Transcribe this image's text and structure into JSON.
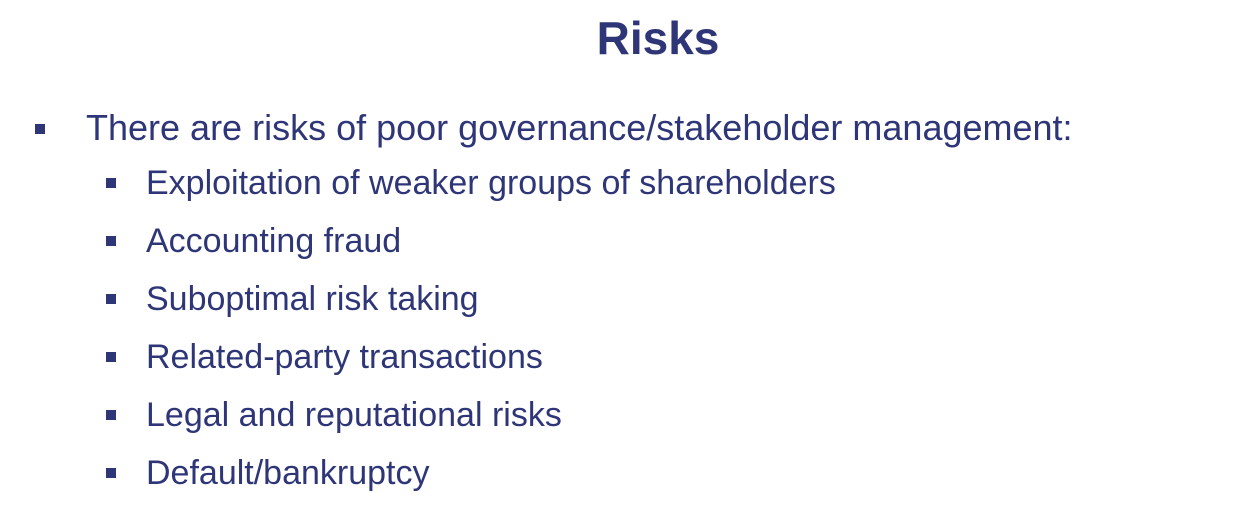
{
  "slide": {
    "title": "Risks",
    "bullet": {
      "text": "There are risks of poor governance/stakeholder management:",
      "sub_items": [
        "Exploitation of weaker groups of shareholders",
        "Accounting fraud",
        "Suboptimal risk taking",
        "Related-party transactions",
        "Legal and reputational risks",
        "Default/bankruptcy"
      ]
    },
    "colors": {
      "text": "#2e3678",
      "background": "#ffffff"
    }
  }
}
